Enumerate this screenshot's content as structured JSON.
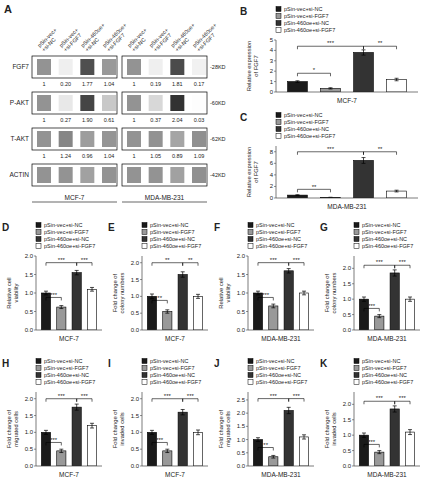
{
  "chart_data": [
    {
      "type": "heatmap",
      "title": "A",
      "xlabel": "MCF-7",
      "categories": [
        "pSin-vec+\n+si-NC",
        "pSin-vec+\n+si-FGF7",
        "pSin-460oe+\n+si-NC",
        "pSin-460oe+\n+si-FGF7"
      ],
      "rows": [
        "FGF7",
        "P-AKT",
        "T-AKT",
        "ACTIN"
      ],
      "cells": [
        [
          0.55,
          0.08,
          0.9,
          0.52
        ],
        [
          0.55,
          0.12,
          0.95,
          0.28
        ],
        [
          0.55,
          0.62,
          0.5,
          0.54
        ],
        [
          0.55,
          0.55,
          0.48,
          0.55
        ]
      ],
      "annotations": [
        [
          "1",
          "0.20",
          "1.77",
          "1.04"
        ],
        [
          "1",
          "0.27",
          "1.90",
          "0.61"
        ],
        [
          "1",
          "1.24",
          "0.96",
          "1.04"
        ],
        null
      ],
      "color_range": [
        0,
        1.2
      ]
    },
    {
      "type": "heatmap",
      "xlabel": "MDA-MB-231",
      "categories": [
        "pSin-vec+\n+si-NC",
        "pSin-vec+\n+si-FGF7",
        "pSin-460oe+\n+si-NC",
        "pSin-460oe+\n+si-FGF7"
      ],
      "row_notes": [
        "-28KD",
        "-60KD",
        "-62KD",
        "-42KD"
      ],
      "cells": [
        [
          0.55,
          0.08,
          0.92,
          0.07
        ],
        [
          0.55,
          0.2,
          1.05,
          0.01
        ],
        [
          0.55,
          0.56,
          0.46,
          0.57
        ],
        [
          0.55,
          0.55,
          0.48,
          0.57
        ]
      ],
      "annotations": [
        [
          "1",
          "0.19",
          "1.81",
          "0.17"
        ],
        [
          "1",
          "0.37",
          "2.04",
          "0.03"
        ],
        [
          "1",
          "1.05",
          "0.89",
          "1.09"
        ],
        null
      ],
      "color_range": [
        0,
        1.2
      ]
    },
    {
      "type": "bar",
      "title": "B",
      "xlabel": "MCF-7",
      "ylabel": "Relative expression\nof FGF7",
      "categories": [
        "pSin-vec+si-NC",
        "pSin-vec+si-FGF7",
        "pSin-460oe+si-NC",
        "pSin-460oe+si-FGF7"
      ],
      "colors": [
        "#1a1a1a",
        "#999999",
        "#333333",
        "#ffffff"
      ],
      "values": [
        1.0,
        0.35,
        3.8,
        1.2
      ],
      "errors": [
        0.08,
        0.06,
        0.25,
        0.12
      ],
      "ylim": [
        0,
        5.0
      ],
      "yticks": [
        0,
        1,
        2,
        3,
        4,
        5
      ],
      "annotations": [
        {
          "from": "pSin-vec+si-NC",
          "to": "pSin-460oe+si-NC",
          "y": 4.4,
          "label": "***"
        },
        {
          "from": "pSin-460oe+si-NC",
          "to": "pSin-460oe+si-FGF7",
          "y": 4.4,
          "label": "**"
        },
        {
          "from": "pSin-vec+si-NC",
          "to": "pSin-vec+si-FGF7",
          "y": 1.8,
          "label": "*"
        }
      ],
      "legend": "top",
      "grid": false,
      "tick_labels": "y"
    },
    {
      "type": "bar",
      "title": "C",
      "xlabel": "MDA-MB-231",
      "ylabel": "Relative expression\nof FGF7",
      "categories": [
        "pSin-vec+si-NC",
        "pSin-vec+si-FGF7",
        "pSin-460oe+si-NC",
        "pSin-460oe+si-FGF7"
      ],
      "colors": [
        "#1a1a1a",
        "#999999",
        "#333333",
        "#ffffff"
      ],
      "values": [
        0.5,
        0.1,
        6.5,
        1.2
      ],
      "errors": [
        0.06,
        0.03,
        0.5,
        0.15
      ],
      "ylim": [
        0,
        9.0
      ],
      "yticks": [
        0,
        2,
        4,
        6,
        8
      ],
      "annotations": [
        {
          "from": "pSin-vec+si-NC",
          "to": "pSin-460oe+si-NC",
          "y": 8.0,
          "label": "***"
        },
        {
          "from": "pSin-460oe+si-NC",
          "to": "pSin-460oe+si-FGF7",
          "y": 8.0,
          "label": "**"
        },
        {
          "from": "pSin-vec+si-NC",
          "to": "pSin-vec+si-FGF7",
          "y": 1.5,
          "label": "**"
        }
      ],
      "legend": "top",
      "grid": false,
      "tick_labels": "y"
    },
    {
      "type": "bar",
      "title": "D",
      "xlabel": "MCF-7",
      "ylabel": "Relative cell\nviability",
      "categories": [
        "pSin-vec+si-NC",
        "pSin-vec+si-FGF7",
        "pSin-460oe+si-NC",
        "pSin-460oe+si-FGF7"
      ],
      "colors": [
        "#1a1a1a",
        "#999999",
        "#333333",
        "#ffffff"
      ],
      "values": [
        1.0,
        0.62,
        1.55,
        1.1
      ],
      "errors": [
        0.05,
        0.04,
        0.06,
        0.05
      ],
      "ylim": [
        0,
        2.0
      ],
      "yticks": [
        {
          "value": 0.0,
          "label": "0.0"
        },
        0.5,
        {
          "value": 1.0,
          "label": "1.0"
        },
        1.5,
        {
          "value": 2.0,
          "label": "2.0"
        }
      ],
      "annotations": [
        {
          "from": "pSin-vec+si-NC",
          "to": "pSin-460oe+si-NC",
          "y": 1.82,
          "label": "***"
        },
        {
          "from": "pSin-460oe+si-NC",
          "to": "pSin-460oe+si-FGF7",
          "y": 1.82,
          "label": "***"
        },
        {
          "from": "pSin-vec+si-NC",
          "to": "pSin-vec+si-FGF7",
          "y": 0.88,
          "label": "***"
        }
      ],
      "legend": "top",
      "grid": false,
      "tick_labels": "y"
    },
    {
      "type": "bar",
      "title": "E",
      "xlabel": "MCF-7",
      "ylabel": "Fold change of\ncolony numbers",
      "categories": [
        "pSin-vec+si-NC",
        "pSin-vec+si-FGF7",
        "pSin-460oe+si-NC",
        "pSin-460oe+si-FGF7"
      ],
      "colors": [
        "#1a1a1a",
        "#999999",
        "#333333",
        "#ffffff"
      ],
      "values": [
        1.0,
        0.55,
        1.65,
        1.0
      ],
      "errors": [
        0.07,
        0.05,
        0.08,
        0.06
      ],
      "ylim": [
        0,
        2.2
      ],
      "yticks": [
        {
          "value": 0.0,
          "label": "0.0"
        },
        0.5,
        {
          "value": 1.0,
          "label": "1.0"
        },
        1.5,
        {
          "value": 2.0,
          "label": "2.0"
        }
      ],
      "annotations": [
        {
          "from": "pSin-vec+si-NC",
          "to": "pSin-460oe+si-NC",
          "y": 2.0,
          "label": "**"
        },
        {
          "from": "pSin-460oe+si-NC",
          "to": "pSin-460oe+si-FGF7",
          "y": 2.0,
          "label": "**"
        },
        {
          "from": "pSin-vec+si-NC",
          "to": "pSin-vec+si-FGF7",
          "y": 0.88,
          "label": "**"
        }
      ],
      "legend": "top",
      "grid": false,
      "tick_labels": "y"
    },
    {
      "type": "bar",
      "title": "F",
      "xlabel": "MDA-MB-231",
      "ylabel": "Relative cell\nviability",
      "categories": [
        "pSin-vec+si-NC",
        "pSin-vec+si-FGF7",
        "pSin-460oe+si-NC",
        "pSin-460oe+si-FGF7"
      ],
      "colors": [
        "#1a1a1a",
        "#999999",
        "#333333",
        "#ffffff"
      ],
      "values": [
        1.0,
        0.65,
        1.6,
        1.0
      ],
      "errors": [
        0.05,
        0.05,
        0.06,
        0.05
      ],
      "ylim": [
        0,
        2.0
      ],
      "yticks": [
        {
          "value": 0.0,
          "label": "0.0"
        },
        0.5,
        {
          "value": 1.0,
          "label": "1.0"
        },
        1.5,
        {
          "value": 2.0,
          "label": "2.0"
        }
      ],
      "annotations": [
        {
          "from": "pSin-vec+si-NC",
          "to": "pSin-460oe+si-NC",
          "y": 1.82,
          "label": "***"
        },
        {
          "from": "pSin-460oe+si-NC",
          "to": "pSin-460oe+si-FGF7",
          "y": 1.82,
          "label": "***"
        },
        {
          "from": "pSin-vec+si-NC",
          "to": "pSin-vec+si-FGF7",
          "y": 0.88,
          "label": "***"
        }
      ],
      "legend": "top",
      "grid": false,
      "tick_labels": "y"
    },
    {
      "type": "bar",
      "title": "G",
      "xlabel": "MDA-MB-231",
      "ylabel": "Fold change of\ncolony numbers",
      "categories": [
        "pSin-vec+si-NC",
        "pSin-vec+si-FGF7",
        "pSin-460oe+si-NC",
        "pSin-460oe+si-FGF7"
      ],
      "colors": [
        "#1a1a1a",
        "#999999",
        "#333333",
        "#ffffff"
      ],
      "values": [
        1.0,
        0.45,
        1.85,
        1.0
      ],
      "errors": [
        0.07,
        0.05,
        0.1,
        0.07
      ],
      "ylim": [
        0,
        2.4
      ],
      "yticks": [
        {
          "value": 0.0,
          "label": "0.0"
        },
        0.5,
        {
          "value": 1.0,
          "label": "1.0"
        },
        1.5,
        {
          "value": 2.0,
          "label": "2.0"
        }
      ],
      "annotations": [
        {
          "from": "pSin-vec+si-NC",
          "to": "pSin-460oe+si-NC",
          "y": 2.1,
          "label": "***"
        },
        {
          "from": "pSin-460oe+si-NC",
          "to": "pSin-460oe+si-FGF7",
          "y": 2.1,
          "label": "***"
        },
        {
          "from": "pSin-vec+si-NC",
          "to": "pSin-vec+si-FGF7",
          "y": 0.7,
          "label": "***"
        }
      ],
      "legend": "top",
      "grid": false,
      "tick_labels": "y"
    },
    {
      "type": "bar",
      "title": "H",
      "xlabel": "MCF-7",
      "ylabel": "Fold change of\nmigrated cells",
      "categories": [
        "pSin-vec+si-NC",
        "pSin-vec+si-FGF7",
        "pSin-460oe+si-NC",
        "pSin-460oe+si-FGF7"
      ],
      "colors": [
        "#1a1a1a",
        "#999999",
        "#333333",
        "#ffffff"
      ],
      "values": [
        1.0,
        0.45,
        1.75,
        1.2
      ],
      "errors": [
        0.06,
        0.05,
        0.09,
        0.07
      ],
      "ylim": [
        0,
        2.2
      ],
      "yticks": [
        {
          "value": 0.0,
          "label": "0.0"
        },
        0.5,
        {
          "value": 1.0,
          "label": "1.0"
        },
        1.5,
        {
          "value": 2.0,
          "label": "2.0"
        }
      ],
      "annotations": [
        {
          "from": "pSin-vec+si-NC",
          "to": "pSin-460oe+si-NC",
          "y": 2.0,
          "label": "***"
        },
        {
          "from": "pSin-460oe+si-NC",
          "to": "pSin-460oe+si-FGF7",
          "y": 2.0,
          "label": "***"
        },
        {
          "from": "pSin-vec+si-NC",
          "to": "pSin-vec+si-FGF7",
          "y": 0.7,
          "label": "***"
        }
      ],
      "legend": "top",
      "grid": false,
      "tick_labels": "y"
    },
    {
      "type": "bar",
      "title": "I",
      "xlabel": "MCF-7",
      "ylabel": "Fold change of\ninvaded cells",
      "categories": [
        "pSin-vec+si-NC",
        "pSin-vec+si-FGF7",
        "pSin-460oe+si-NC",
        "pSin-460oe+si-FGF7"
      ],
      "colors": [
        "#1a1a1a",
        "#999999",
        "#333333",
        "#ffffff"
      ],
      "values": [
        1.0,
        0.45,
        1.6,
        1.0
      ],
      "errors": [
        0.06,
        0.05,
        0.08,
        0.07
      ],
      "ylim": [
        0,
        2.2
      ],
      "yticks": [
        {
          "value": 0.0,
          "label": "0.0"
        },
        0.5,
        {
          "value": 1.0,
          "label": "1.0"
        },
        1.5,
        {
          "value": 2.0,
          "label": "2.0"
        }
      ],
      "annotations": [
        {
          "from": "pSin-vec+si-NC",
          "to": "pSin-460oe+si-NC",
          "y": 2.0,
          "label": "***"
        },
        {
          "from": "pSin-460oe+si-NC",
          "to": "pSin-460oe+si-FGF7",
          "y": 2.0,
          "label": "***"
        },
        {
          "from": "pSin-vec+si-NC",
          "to": "pSin-vec+si-FGF7",
          "y": 0.7,
          "label": "***"
        }
      ],
      "legend": "top",
      "grid": false,
      "tick_labels": "y"
    },
    {
      "type": "bar",
      "title": "J",
      "xlabel": "MDA-MB-231",
      "ylabel": "Fold change of\nmigrated cells",
      "categories": [
        "pSin-vec+si-NC",
        "pSin-vec+si-FGF7",
        "pSin-460oe+si-NC",
        "pSin-460oe+si-FGF7"
      ],
      "colors": [
        "#1a1a1a",
        "#999999",
        "#333333",
        "#ffffff"
      ],
      "values": [
        1.0,
        0.35,
        2.1,
        1.1
      ],
      "errors": [
        0.07,
        0.05,
        0.12,
        0.08
      ],
      "ylim": [
        0,
        2.8
      ],
      "yticks": [
        {
          "value": 0.0,
          "label": "0.0"
        },
        0.5,
        {
          "value": 1.0,
          "label": "1.0"
        },
        1.5,
        {
          "value": 2.0,
          "label": "2.0"
        },
        2.5
      ],
      "annotations": [
        {
          "from": "pSin-vec+si-NC",
          "to": "pSin-460oe+si-NC",
          "y": 2.55,
          "label": "***"
        },
        {
          "from": "pSin-460oe+si-NC",
          "to": "pSin-460oe+si-FGF7",
          "y": 2.55,
          "label": "***"
        },
        {
          "from": "pSin-vec+si-NC",
          "to": "pSin-vec+si-FGF7",
          "y": 0.7,
          "label": "**"
        }
      ],
      "legend": "top",
      "grid": false,
      "tick_labels": "y"
    },
    {
      "type": "bar",
      "title": "K",
      "xlabel": "MDA-MB-231",
      "ylabel": "Fold change of\ninvaded cells",
      "categories": [
        "pSin-vec+si-NC",
        "pSin-vec+si-FGF7",
        "pSin-460oe+si-NC",
        "pSin-460oe+si-FGF7"
      ],
      "colors": [
        "#1a1a1a",
        "#999999",
        "#333333",
        "#ffffff"
      ],
      "values": [
        1.0,
        0.45,
        1.85,
        1.1
      ],
      "errors": [
        0.07,
        0.05,
        0.1,
        0.08
      ],
      "ylim": [
        0,
        2.4
      ],
      "yticks": [
        {
          "value": 0.0,
          "label": "0.0"
        },
        0.5,
        {
          "value": 1.0,
          "label": "1.0"
        },
        1.5,
        {
          "value": 2.0,
          "label": "2.0"
        }
      ],
      "annotations": [
        {
          "from": "pSin-vec+si-NC",
          "to": "pSin-460oe+si-NC",
          "y": 2.1,
          "label": "***"
        },
        {
          "from": "pSin-460oe+si-NC",
          "to": "pSin-460oe+si-FGF7",
          "y": 2.1,
          "label": "***"
        },
        {
          "from": "pSin-vec+si-NC",
          "to": "pSin-vec+si-FGF7",
          "y": 0.7,
          "label": "***"
        }
      ],
      "legend": "top",
      "grid": false,
      "tick_labels": "y"
    }
  ]
}
